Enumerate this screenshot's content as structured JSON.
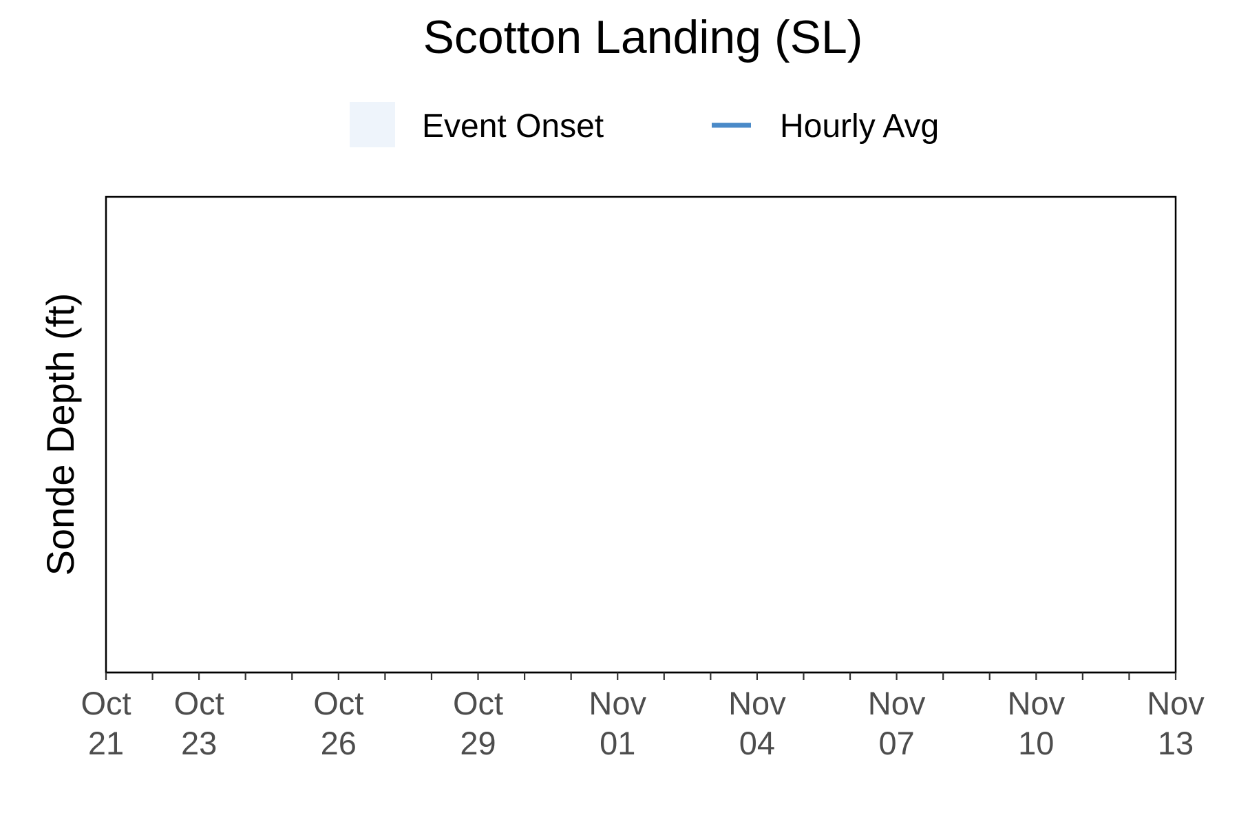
{
  "chart_data": {
    "type": "line",
    "title": "Scotton Landing (SL)",
    "xlabel": "",
    "ylabel": "Sonde Depth (ft)",
    "x_axis": {
      "type": "date",
      "range": [
        "2024-10-21",
        "2024-11-13"
      ],
      "major_ticks": [
        {
          "date": "2024-10-21",
          "label_line1": "Oct",
          "label_line2": "21"
        },
        {
          "date": "2024-10-23",
          "label_line1": "Oct",
          "label_line2": "23"
        },
        {
          "date": "2024-10-26",
          "label_line1": "Oct",
          "label_line2": "26"
        },
        {
          "date": "2024-10-29",
          "label_line1": "Oct",
          "label_line2": "29"
        },
        {
          "date": "2024-11-01",
          "label_line1": "Nov",
          "label_line2": "01"
        },
        {
          "date": "2024-11-04",
          "label_line1": "Nov",
          "label_line2": "04"
        },
        {
          "date": "2024-11-07",
          "label_line1": "Nov",
          "label_line2": "07"
        },
        {
          "date": "2024-11-10",
          "label_line1": "Nov",
          "label_line2": "10"
        },
        {
          "date": "2024-11-13",
          "label_line1": "Nov",
          "label_line2": "13"
        }
      ],
      "minor_tick_dates": [
        "2024-10-22",
        "2024-10-24",
        "2024-10-25",
        "2024-10-27",
        "2024-10-28",
        "2024-10-30",
        "2024-10-31",
        "2024-11-02",
        "2024-11-03",
        "2024-11-05",
        "2024-11-06",
        "2024-11-08",
        "2024-11-09",
        "2024-11-11",
        "2024-11-12"
      ]
    },
    "y_axis": {
      "ticks": []
    },
    "grid": false,
    "legend": {
      "placement": "top",
      "entries": [
        {
          "label": "Event Onset",
          "kind": "area",
          "color": "#eef4fb"
        },
        {
          "label": "Hourly Avg",
          "kind": "line",
          "color": "#4a8ac8"
        }
      ]
    },
    "series": [
      {
        "name": "Hourly Avg",
        "x": [],
        "y": []
      }
    ],
    "event_onset_periods": []
  },
  "colors": {
    "background": "#ffffff",
    "axis": "#000000",
    "tick_label": "#4d4d4d",
    "title": "#000000"
  }
}
